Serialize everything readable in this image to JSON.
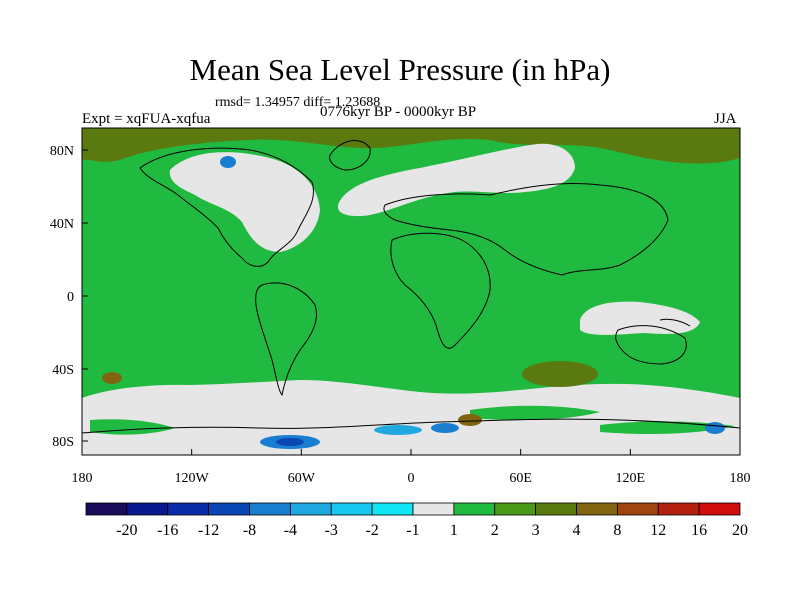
{
  "title": "Mean Sea Level Pressure (in hPa)",
  "stats": "rmsd= 1.34957 diff= 1.23688",
  "experiment": "Expt = xqFUA-xqfua",
  "period": "0776kyr BP - 0000kyr BP",
  "season": "JJA",
  "lat_labels": [
    "80N",
    "40N",
    "0",
    "40S",
    "80S"
  ],
  "lon_labels": [
    "180",
    "120W",
    "60W",
    "0",
    "60E",
    "120E",
    "180"
  ],
  "colorbar": {
    "labels": [
      "-20",
      "-16",
      "-12",
      "-8",
      "-4",
      "-3",
      "-2",
      "-1",
      "1",
      "2",
      "3",
      "4",
      "8",
      "12",
      "16",
      "20"
    ],
    "colors": [
      "#1a0a5a",
      "#0a1890",
      "#0b2ca8",
      "#0a46b4",
      "#1a7ed0",
      "#20a8e0",
      "#18c8ee",
      "#10e6f4",
      "#e6e6e6",
      "#20ba40",
      "#4a9a18",
      "#5a7a10",
      "#806410",
      "#a04410",
      "#b42010",
      "#d00c0c"
    ]
  },
  "colors": {
    "ocean_land_green": "#20ba40",
    "neutral_gray": "#e6e6e6",
    "olive_positive": "#5a7a10",
    "blue_negative": "#1a7ed0"
  }
}
